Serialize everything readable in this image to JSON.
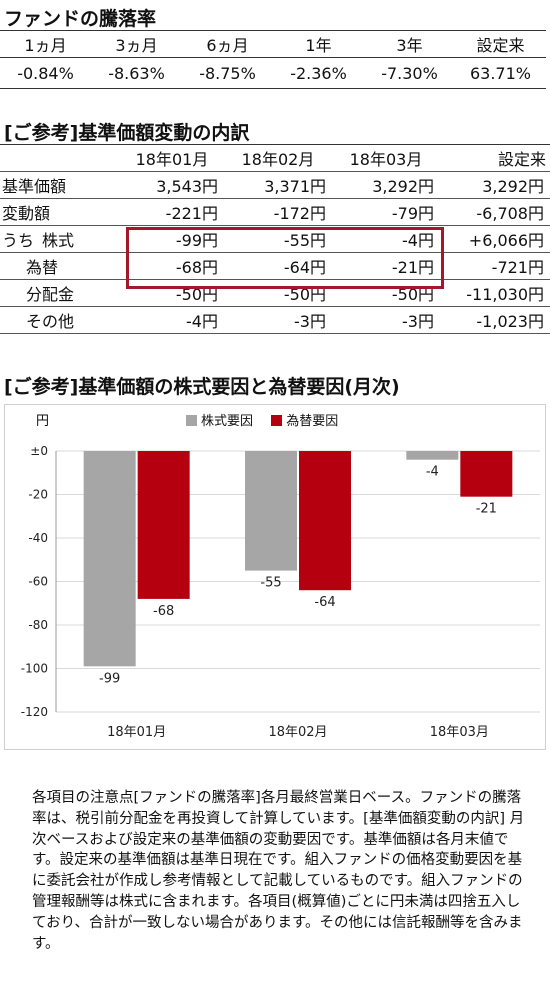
{
  "performance": {
    "title": "ファンドの騰落率",
    "headers": [
      "1ヵ月",
      "3ヵ月",
      "6ヵ月",
      "1年",
      "3年",
      "設定来"
    ],
    "values": [
      "-0.84%",
      "-8.63%",
      "-8.75%",
      "-2.36%",
      "-7.30%",
      "63.71%"
    ]
  },
  "breakdown": {
    "title": "[ご参考]基準価額変動の内訳",
    "headers": [
      "",
      "18年01月",
      "18年02月",
      "18年03月",
      "設定来"
    ],
    "rows": [
      {
        "label": "基準価額",
        "prefix": "",
        "values": [
          "3,543円",
          "3,371円",
          "3,292円",
          "3,292円"
        ]
      },
      {
        "label": "変動額",
        "prefix": "",
        "values": [
          "-221円",
          "-172円",
          "-79円",
          "-6,708円"
        ]
      },
      {
        "label": "株式",
        "prefix": "うち",
        "values": [
          "-99円",
          "-55円",
          "-4円",
          "+6,066円"
        ]
      },
      {
        "label": "為替",
        "prefix": "",
        "values": [
          "-68円",
          "-64円",
          "-21円",
          "-721円"
        ]
      },
      {
        "label": "分配金",
        "prefix": "",
        "values": [
          "-50円",
          "-50円",
          "-50円",
          "-11,030円"
        ]
      },
      {
        "label": "その他",
        "prefix": "",
        "values": [
          "-4円",
          "-3円",
          "-3円",
          "-1,023円"
        ]
      }
    ],
    "highlight_color": "#a3182a"
  },
  "chart_data": {
    "type": "bar",
    "title": "[ご参考]基準価額の株式要因と為替要因(月次)",
    "ylabel": "円",
    "categories": [
      "18年01月",
      "18年02月",
      "18年03月"
    ],
    "series": [
      {
        "name": "株式要因",
        "values": [
          -99,
          -55,
          -4
        ],
        "color": "#a6a6a6"
      },
      {
        "name": "為替要因",
        "values": [
          -68,
          -64,
          -21
        ],
        "color": "#b5000f"
      }
    ],
    "ylim": [
      -120,
      0
    ],
    "yticks": [
      0,
      -20,
      -40,
      -60,
      -80,
      -100,
      -120
    ],
    "ytick_labels": [
      "±0",
      "-20",
      "-40",
      "-60",
      "-80",
      "-100",
      "-120"
    ],
    "grid": true,
    "legend_position": "top"
  },
  "notes": "各項目の注意点[ファンドの騰落率]各月最終営業日ベース。ファンドの騰落率は、税引前分配金を再投資して計算しています。[基準価額変動の内訳] 月次ベースおよび設定来の基準価額の変動要因です。基準価額は各月末値です。設定来の基準価額は基準日現在です。組入ファンドの価格変動要因を基に委託会社が作成し参考情報として記載しているものです。組入ファンドの管理報酬等は株式に含まれます。各項目(概算値)ごとに円未満は四捨五入しており、合計が一致しない場合があります。その他には信託報酬等を含みます。"
}
